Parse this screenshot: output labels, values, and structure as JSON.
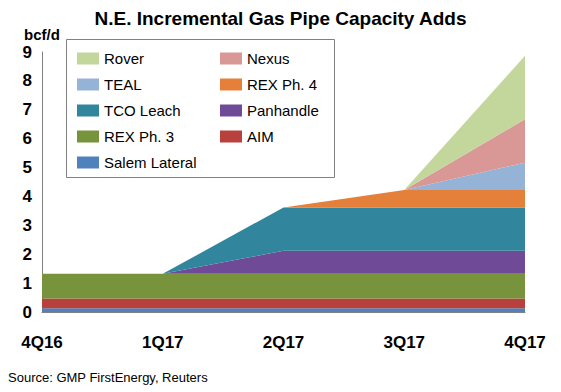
{
  "chart_data": {
    "type": "area",
    "title": "N.E. Incremental Gas Pipe Capacity Adds",
    "y_label": "bcf/d",
    "source": "Source: GMP FirstEnergy, Reuters",
    "categories": [
      "4Q16",
      "1Q17",
      "2Q17",
      "3Q17",
      "4Q17"
    ],
    "series": [
      {
        "name": "Salem Lateral",
        "color": "#4f81bd",
        "values": [
          0.13,
          0.13,
          0.13,
          0.13,
          0.13
        ]
      },
      {
        "name": "AIM",
        "color": "#b8403d",
        "values": [
          0.34,
          0.34,
          0.34,
          0.34,
          0.34
        ]
      },
      {
        "name": "REX Ph. 3",
        "color": "#77933c",
        "values": [
          0.85,
          0.85,
          0.85,
          0.85,
          0.85
        ]
      },
      {
        "name": "Panhandle",
        "color": "#6f4a97",
        "values": [
          0,
          0,
          0.8,
          0.8,
          0.8
        ]
      },
      {
        "name": "TCO Leach",
        "color": "#31859c",
        "values": [
          0,
          0,
          1.5,
          1.5,
          1.5
        ]
      },
      {
        "name": "REX Ph. 4",
        "color": "#e5803a",
        "values": [
          0,
          0,
          0,
          0.6,
          0.6
        ]
      },
      {
        "name": "TEAL",
        "color": "#95b3d7",
        "values": [
          0,
          0,
          0,
          0,
          0.95
        ]
      },
      {
        "name": "Nexus",
        "color": "#d99795",
        "values": [
          0,
          0,
          0,
          0,
          1.5
        ]
      },
      {
        "name": "Rover",
        "color": "#c3d69b",
        "values": [
          0,
          0,
          0,
          0,
          2.2
        ]
      }
    ],
    "ylim": [
      0,
      9
    ],
    "yticks": [
      0,
      1,
      2,
      3,
      4,
      5,
      6,
      7,
      8,
      9
    ],
    "stacked": true,
    "grid": false,
    "legend": "upper left"
  }
}
